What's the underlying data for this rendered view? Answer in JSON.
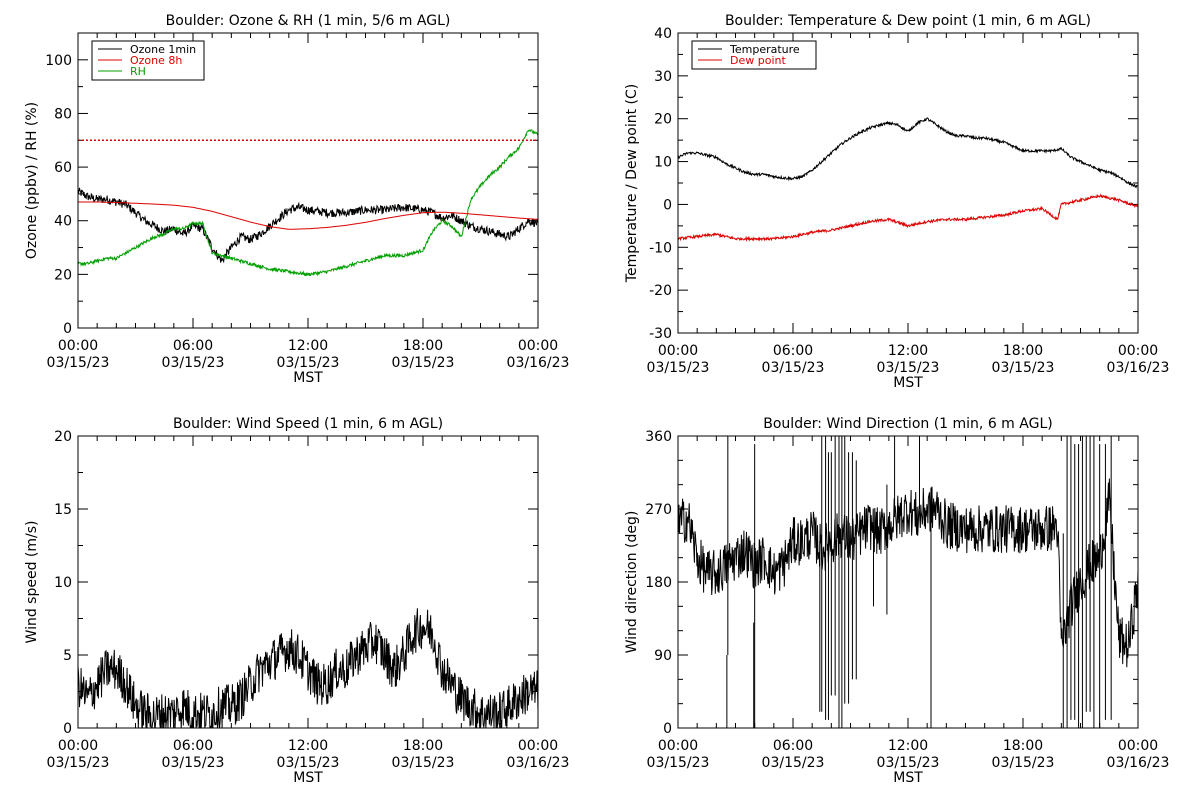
{
  "colors": {
    "black": "#000000",
    "red": "#dd0000",
    "green": "#00a000",
    "background": "#ffffff"
  },
  "chart_data": [
    {
      "type": "line",
      "title": "Boulder: Ozone & RH (1 min, 5/6 m AGL)",
      "xlabel": "MST",
      "ylabel": "Ozone (ppbv) / RH (%)",
      "xlim": [
        0,
        24
      ],
      "ylim": [
        0,
        110
      ],
      "xticks": [
        {
          "x": 0,
          "time": "00:00",
          "date": "03/15/23"
        },
        {
          "x": 6,
          "time": "06:00",
          "date": "03/15/23"
        },
        {
          "x": 12,
          "time": "12:00",
          "date": "03/15/23"
        },
        {
          "x": 18,
          "time": "18:00",
          "date": "03/15/23"
        },
        {
          "x": 24,
          "time": "00:00",
          "date": "03/16/23"
        }
      ],
      "yticks": [
        0,
        20,
        40,
        60,
        80,
        100
      ],
      "legend_position": "top-left",
      "reference_line": {
        "y": 70,
        "color": "red",
        "style": "dotted"
      },
      "series": [
        {
          "name": "Ozone 1min",
          "color": "black",
          "noise": 1.6,
          "x": [
            0,
            0.5,
            1,
            1.5,
            2,
            2.5,
            3,
            3.5,
            4,
            4.5,
            5,
            5.5,
            6,
            6.5,
            7,
            7.5,
            8,
            8.5,
            9,
            9.5,
            10,
            10.5,
            11,
            11.5,
            12,
            13,
            14,
            15,
            16,
            17,
            18,
            18.5,
            19,
            19.5,
            20,
            20.5,
            21,
            21.5,
            22,
            22.5,
            23,
            23.5,
            24
          ],
          "y": [
            51,
            49,
            48,
            48,
            47,
            46,
            43,
            40,
            38,
            36,
            37,
            35,
            38,
            37,
            30,
            25,
            30,
            34,
            33,
            35,
            38,
            41,
            44,
            45,
            44,
            43,
            43,
            44,
            44,
            45,
            44,
            43,
            41,
            42,
            40,
            38,
            37,
            36,
            35,
            34,
            37,
            40,
            39
          ]
        },
        {
          "name": "Ozone 8h",
          "color": "red",
          "noise": 0,
          "x": [
            0,
            1,
            2,
            3,
            4,
            5,
            6,
            7,
            8,
            9,
            10,
            11,
            12,
            13,
            14,
            15,
            16,
            17,
            18,
            19,
            20,
            21,
            22,
            23,
            24
          ],
          "y": [
            47,
            47,
            46.8,
            46.5,
            46.2,
            45.8,
            45,
            43.5,
            41.5,
            39.5,
            37.8,
            36.8,
            37,
            37.5,
            38.3,
            39.4,
            40.8,
            42,
            43,
            43.2,
            42.8,
            42.2,
            41.6,
            41,
            40.5
          ]
        },
        {
          "name": "RH",
          "color": "green",
          "noise": 0.6,
          "x": [
            0,
            0.5,
            1,
            1.5,
            2,
            2.5,
            3,
            3.5,
            4,
            4.5,
            5,
            5.5,
            6,
            6.5,
            7,
            7.5,
            8,
            8.5,
            9,
            10,
            11,
            12,
            13,
            14,
            15,
            16,
            17,
            18,
            18.5,
            19,
            19.5,
            20,
            20.5,
            21,
            21.5,
            22,
            22.5,
            23,
            23.5,
            24
          ],
          "y": [
            24,
            24,
            25,
            26,
            26,
            28,
            30,
            32,
            34,
            35,
            37,
            37,
            39,
            39,
            28,
            27,
            26,
            25,
            24,
            22,
            21,
            20,
            21,
            23,
            25,
            27,
            27,
            29,
            36,
            40,
            38,
            34,
            48,
            53,
            57,
            60,
            64,
            67,
            74,
            72
          ]
        }
      ]
    },
    {
      "type": "line",
      "title": "Boulder: Temperature & Dew point (1 min, 6 m AGL)",
      "xlabel": "MST",
      "ylabel": "Temperature / Dew point (C)",
      "xlim": [
        0,
        24
      ],
      "ylim": [
        -30,
        40
      ],
      "xticks": [
        {
          "x": 0,
          "time": "00:00",
          "date": "03/15/23"
        },
        {
          "x": 6,
          "time": "06:00",
          "date": "03/15/23"
        },
        {
          "x": 12,
          "time": "12:00",
          "date": "03/15/23"
        },
        {
          "x": 18,
          "time": "18:00",
          "date": "03/15/23"
        },
        {
          "x": 24,
          "time": "00:00",
          "date": "03/16/23"
        }
      ],
      "yticks": [
        -30,
        -20,
        -10,
        0,
        10,
        20,
        30,
        40
      ],
      "legend_position": "top-left",
      "series": [
        {
          "name": "Temperature",
          "color": "black",
          "noise": 0.3,
          "x": [
            0,
            0.5,
            1,
            1.5,
            2,
            2.5,
            3,
            3.5,
            4,
            4.5,
            5,
            5.5,
            6,
            6.5,
            7,
            7.5,
            8,
            8.5,
            9,
            9.5,
            10,
            10.5,
            11,
            11.5,
            12,
            12.5,
            13,
            13.5,
            14,
            14.5,
            15,
            15.5,
            16,
            16.5,
            17,
            17.5,
            18,
            18.5,
            19,
            19.5,
            20,
            20.5,
            21,
            21.5,
            22,
            22.5,
            23,
            23.5,
            24
          ],
          "y": [
            11,
            12,
            12,
            11.5,
            11,
            9.5,
            8.5,
            7.5,
            7,
            7,
            6.5,
            6.2,
            6,
            6.5,
            8,
            10,
            12,
            14,
            15.5,
            16.8,
            17.8,
            18.5,
            19,
            18.5,
            17,
            19,
            20,
            18.5,
            17,
            16,
            16,
            15.5,
            15.5,
            15,
            14.5,
            13.5,
            12.5,
            12.5,
            12.5,
            12.5,
            13,
            11,
            10,
            9,
            8,
            7.5,
            6.5,
            5,
            4
          ]
        },
        {
          "name": "Dew point",
          "color": "red",
          "noise": 0.3,
          "x": [
            0,
            1,
            2,
            3,
            4,
            5,
            6,
            7,
            8,
            9,
            10,
            11,
            12,
            13,
            14,
            15,
            16,
            17,
            18,
            19,
            19.8,
            20,
            20.5,
            21,
            22,
            23,
            24
          ],
          "y": [
            -8,
            -7.5,
            -7,
            -8,
            -8,
            -8,
            -7.5,
            -6.5,
            -6,
            -5,
            -4,
            -3.5,
            -5,
            -4,
            -3.5,
            -3.5,
            -3,
            -2.5,
            -1.5,
            -1,
            -3.5,
            0,
            0.5,
            1,
            2,
            1,
            -0.5
          ]
        }
      ]
    },
    {
      "type": "line",
      "title": "Boulder: Wind Speed (1 min, 6 m AGL)",
      "xlabel": "MST",
      "ylabel": "Wind speed (m/s)",
      "xlim": [
        0,
        24
      ],
      "ylim": [
        0,
        20
      ],
      "xticks": [
        {
          "x": 0,
          "time": "00:00",
          "date": "03/15/23"
        },
        {
          "x": 6,
          "time": "06:00",
          "date": "03/15/23"
        },
        {
          "x": 12,
          "time": "12:00",
          "date": "03/15/23"
        },
        {
          "x": 18,
          "time": "18:00",
          "date": "03/15/23"
        },
        {
          "x": 24,
          "time": "00:00",
          "date": "03/16/23"
        }
      ],
      "yticks": [
        0,
        5,
        10,
        15,
        20
      ],
      "series": [
        {
          "name": "",
          "color": "black",
          "noise": 1.5,
          "x": [
            0,
            0.5,
            1,
            1.5,
            2,
            2.5,
            3,
            3.5,
            4,
            4.5,
            5,
            5.5,
            6,
            6.5,
            7,
            7.5,
            8,
            8.5,
            9,
            9.5,
            10,
            10.5,
            11,
            11.5,
            12,
            12.5,
            13,
            13.5,
            14,
            14.5,
            15,
            15.5,
            16,
            16.5,
            17,
            17.5,
            18,
            18.5,
            19,
            19.5,
            20,
            20.5,
            21,
            21.5,
            22,
            22.5,
            23,
            23.5,
            24
          ],
          "y": [
            3,
            2,
            3,
            4,
            4,
            3,
            1.5,
            1,
            0.8,
            1,
            1,
            1.5,
            1,
            1,
            1,
            1.5,
            1.5,
            2,
            3,
            4,
            4.5,
            5,
            5.5,
            5,
            4,
            3,
            3,
            4,
            4,
            5,
            5.5,
            6,
            5,
            4,
            5,
            6.5,
            7,
            6.5,
            4,
            3,
            2,
            1.5,
            1,
            1,
            1,
            1.5,
            2,
            2.5,
            2.5
          ]
        }
      ]
    },
    {
      "type": "line",
      "title": "Boulder: Wind Direction (1 min, 6 m AGL)",
      "xlabel": "MST",
      "ylabel": "Wind direction (deg)",
      "xlim": [
        0,
        24
      ],
      "ylim": [
        0,
        360
      ],
      "xticks": [
        {
          "x": 0,
          "time": "00:00",
          "date": "03/15/23"
        },
        {
          "x": 6,
          "time": "06:00",
          "date": "03/15/23"
        },
        {
          "x": 12,
          "time": "12:00",
          "date": "03/15/23"
        },
        {
          "x": 18,
          "time": "18:00",
          "date": "03/15/23"
        },
        {
          "x": 24,
          "time": "00:00",
          "date": "03/16/23"
        }
      ],
      "yticks": [
        0,
        90,
        180,
        270,
        360
      ],
      "series": [
        {
          "name": "",
          "color": "black",
          "noise": 30,
          "x": [
            0,
            0.5,
            1,
            1.5,
            2,
            2.5,
            3,
            3.5,
            4,
            4.5,
            5,
            5.5,
            6,
            6.5,
            7,
            7.5,
            8,
            8.5,
            9,
            9.5,
            10,
            10.5,
            11,
            11.5,
            12,
            12.5,
            13,
            13.5,
            14,
            15,
            16,
            17,
            18,
            19,
            19.8,
            20,
            20.5,
            21,
            21.5,
            22,
            22.5,
            23,
            23.5,
            24
          ],
          "y": [
            250,
            260,
            210,
            190,
            190,
            200,
            210,
            220,
            200,
            210,
            190,
            200,
            230,
            230,
            240,
            220,
            230,
            240,
            230,
            240,
            250,
            240,
            250,
            260,
            270,
            260,
            270,
            270,
            250,
            245,
            245,
            245,
            245,
            245,
            248,
            100,
            150,
            180,
            200,
            210,
            280,
            110,
            100,
            180
          ]
        }
      ],
      "spikes": [
        {
          "x": 2.55,
          "y1": 90,
          "y2": 0
        },
        {
          "x": 2.6,
          "y1": 90,
          "y2": 360
        },
        {
          "x": 3.95,
          "y1": 130,
          "y2": 0
        },
        {
          "x": 4.0,
          "y1": 0,
          "y2": 350
        },
        {
          "x": 7.4,
          "y1": 230,
          "y2": 20
        },
        {
          "x": 7.5,
          "y1": 20,
          "y2": 360
        },
        {
          "x": 7.7,
          "y1": 360,
          "y2": 10
        },
        {
          "x": 7.85,
          "y1": 10,
          "y2": 340
        },
        {
          "x": 8.0,
          "y1": 340,
          "y2": 40
        },
        {
          "x": 8.2,
          "y1": 40,
          "y2": 360
        },
        {
          "x": 8.4,
          "y1": 360,
          "y2": 0
        },
        {
          "x": 8.55,
          "y1": 0,
          "y2": 360
        },
        {
          "x": 8.7,
          "y1": 360,
          "y2": 30
        },
        {
          "x": 8.9,
          "y1": 30,
          "y2": 340
        },
        {
          "x": 9.1,
          "y1": 340,
          "y2": 60
        },
        {
          "x": 9.3,
          "y1": 60,
          "y2": 330
        },
        {
          "x": 10.2,
          "y1": 250,
          "y2": 150
        },
        {
          "x": 10.9,
          "y1": 300,
          "y2": 140
        },
        {
          "x": 11.3,
          "y1": 260,
          "y2": 360
        },
        {
          "x": 12.6,
          "y1": 270,
          "y2": 360
        },
        {
          "x": 13.2,
          "y1": 280,
          "y2": 0
        },
        {
          "x": 20.1,
          "y1": 240,
          "y2": 0
        },
        {
          "x": 20.3,
          "y1": 0,
          "y2": 360
        },
        {
          "x": 20.5,
          "y1": 360,
          "y2": 10
        },
        {
          "x": 20.7,
          "y1": 10,
          "y2": 350
        },
        {
          "x": 20.9,
          "y1": 350,
          "y2": 0
        },
        {
          "x": 21.1,
          "y1": 0,
          "y2": 360
        },
        {
          "x": 21.3,
          "y1": 360,
          "y2": 20
        },
        {
          "x": 21.5,
          "y1": 20,
          "y2": 360
        },
        {
          "x": 21.7,
          "y1": 360,
          "y2": 0
        },
        {
          "x": 22.0,
          "y1": 0,
          "y2": 350
        },
        {
          "x": 22.3,
          "y1": 350,
          "y2": 10
        },
        {
          "x": 22.6,
          "y1": 10,
          "y2": 360
        }
      ]
    }
  ]
}
